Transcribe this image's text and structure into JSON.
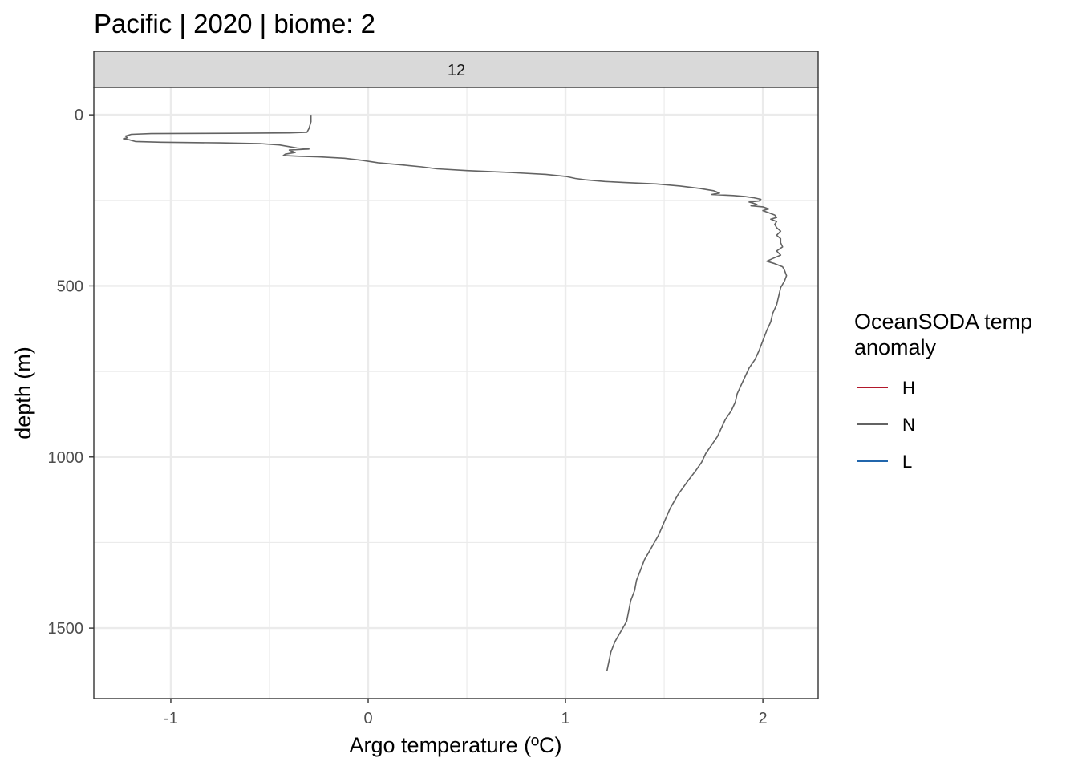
{
  "chart_data": {
    "type": "line",
    "title": "Pacific | 2020 | biome: 2",
    "facet_label": "12",
    "xlabel": "Argo temperature (ºC)",
    "ylabel": "depth (m)",
    "xlim": [
      -1.39,
      2.28
    ],
    "ylim": [
      1706,
      -80
    ],
    "y_reversed": true,
    "x_ticks": [
      -1,
      0,
      1,
      2
    ],
    "x_tick_labels": [
      "-1",
      "0",
      "1",
      "2"
    ],
    "y_ticks": [
      0,
      500,
      1000,
      1500
    ],
    "y_tick_labels": [
      "0",
      "500",
      "1000",
      "1500"
    ],
    "grid": true,
    "legend": {
      "title_lines": [
        "OceanSODA temp",
        "anomaly"
      ],
      "position": "right",
      "entries": [
        {
          "label": "H",
          "color": "#b2182b"
        },
        {
          "label": "N",
          "color": "#636363"
        },
        {
          "label": "L",
          "color": "#2166ac"
        }
      ]
    },
    "series": [
      {
        "name": "N",
        "color": "#636363",
        "points": [
          [
            -0.29,
            0
          ],
          [
            -0.29,
            20
          ],
          [
            -0.3,
            40
          ],
          [
            -0.31,
            51
          ],
          [
            -0.4,
            53
          ],
          [
            -0.7,
            54
          ],
          [
            -1.1,
            55
          ],
          [
            -1.2,
            57
          ],
          [
            -1.23,
            62
          ],
          [
            -1.22,
            67
          ],
          [
            -1.24,
            70
          ],
          [
            -1.21,
            73
          ],
          [
            -1.18,
            78
          ],
          [
            -1.05,
            80
          ],
          [
            -0.75,
            82
          ],
          [
            -0.55,
            84
          ],
          [
            -0.45,
            88
          ],
          [
            -0.4,
            93
          ],
          [
            -0.36,
            97
          ],
          [
            -0.3,
            100
          ],
          [
            -0.4,
            103
          ],
          [
            -0.37,
            110
          ],
          [
            -0.42,
            115
          ],
          [
            -0.43,
            119
          ],
          [
            -0.35,
            121
          ],
          [
            -0.25,
            123
          ],
          [
            -0.12,
            127
          ],
          [
            -0.03,
            133
          ],
          [
            0.05,
            140
          ],
          [
            0.18,
            147
          ],
          [
            0.27,
            152
          ],
          [
            0.35,
            158
          ],
          [
            0.5,
            163
          ],
          [
            0.7,
            168
          ],
          [
            0.9,
            174
          ],
          [
            1.0,
            180
          ],
          [
            1.05,
            186
          ],
          [
            1.1,
            190
          ],
          [
            1.2,
            195
          ],
          [
            1.3,
            198
          ],
          [
            1.46,
            202
          ],
          [
            1.58,
            208
          ],
          [
            1.68,
            215
          ],
          [
            1.75,
            222
          ],
          [
            1.78,
            229
          ],
          [
            1.74,
            233
          ],
          [
            1.85,
            236
          ],
          [
            1.91,
            239
          ],
          [
            1.95,
            242
          ],
          [
            1.99,
            247
          ],
          [
            1.98,
            252
          ],
          [
            1.93,
            255
          ],
          [
            1.95,
            258
          ],
          [
            1.97,
            262
          ],
          [
            1.94,
            266
          ],
          [
            2.0,
            269
          ],
          [
            2.03,
            275
          ],
          [
            2.0,
            280
          ],
          [
            2.03,
            286
          ],
          [
            2.06,
            293
          ],
          [
            2.07,
            300
          ],
          [
            2.04,
            305
          ],
          [
            2.07,
            312
          ],
          [
            2.06,
            320
          ],
          [
            2.07,
            330
          ],
          [
            2.09,
            340
          ],
          [
            2.07,
            352
          ],
          [
            2.09,
            362
          ],
          [
            2.09,
            374
          ],
          [
            2.1,
            386
          ],
          [
            2.07,
            398
          ],
          [
            2.09,
            410
          ],
          [
            2.05,
            420
          ],
          [
            2.02,
            428
          ],
          [
            2.06,
            435
          ],
          [
            2.1,
            444
          ],
          [
            2.11,
            455
          ],
          [
            2.12,
            470
          ],
          [
            2.11,
            485
          ],
          [
            2.09,
            505
          ],
          [
            2.08,
            530
          ],
          [
            2.07,
            555
          ],
          [
            2.05,
            580
          ],
          [
            2.04,
            605
          ],
          [
            2.02,
            630
          ],
          [
            2.0,
            660
          ],
          [
            1.98,
            690
          ],
          [
            1.96,
            715
          ],
          [
            1.93,
            740
          ],
          [
            1.91,
            765
          ],
          [
            1.89,
            790
          ],
          [
            1.87,
            815
          ],
          [
            1.86,
            840
          ],
          [
            1.84,
            865
          ],
          [
            1.81,
            890
          ],
          [
            1.79,
            915
          ],
          [
            1.77,
            940
          ],
          [
            1.74,
            965
          ],
          [
            1.71,
            990
          ],
          [
            1.69,
            1015
          ],
          [
            1.66,
            1040
          ],
          [
            1.62,
            1070
          ],
          [
            1.57,
            1110
          ],
          [
            1.53,
            1150
          ],
          [
            1.5,
            1190
          ],
          [
            1.47,
            1230
          ],
          [
            1.43,
            1270
          ],
          [
            1.4,
            1300
          ],
          [
            1.38,
            1330
          ],
          [
            1.36,
            1360
          ],
          [
            1.35,
            1390
          ],
          [
            1.33,
            1420
          ],
          [
            1.32,
            1450
          ],
          [
            1.31,
            1480
          ],
          [
            1.28,
            1510
          ],
          [
            1.25,
            1540
          ],
          [
            1.23,
            1570
          ],
          [
            1.21,
            1625
          ]
        ]
      }
    ]
  }
}
